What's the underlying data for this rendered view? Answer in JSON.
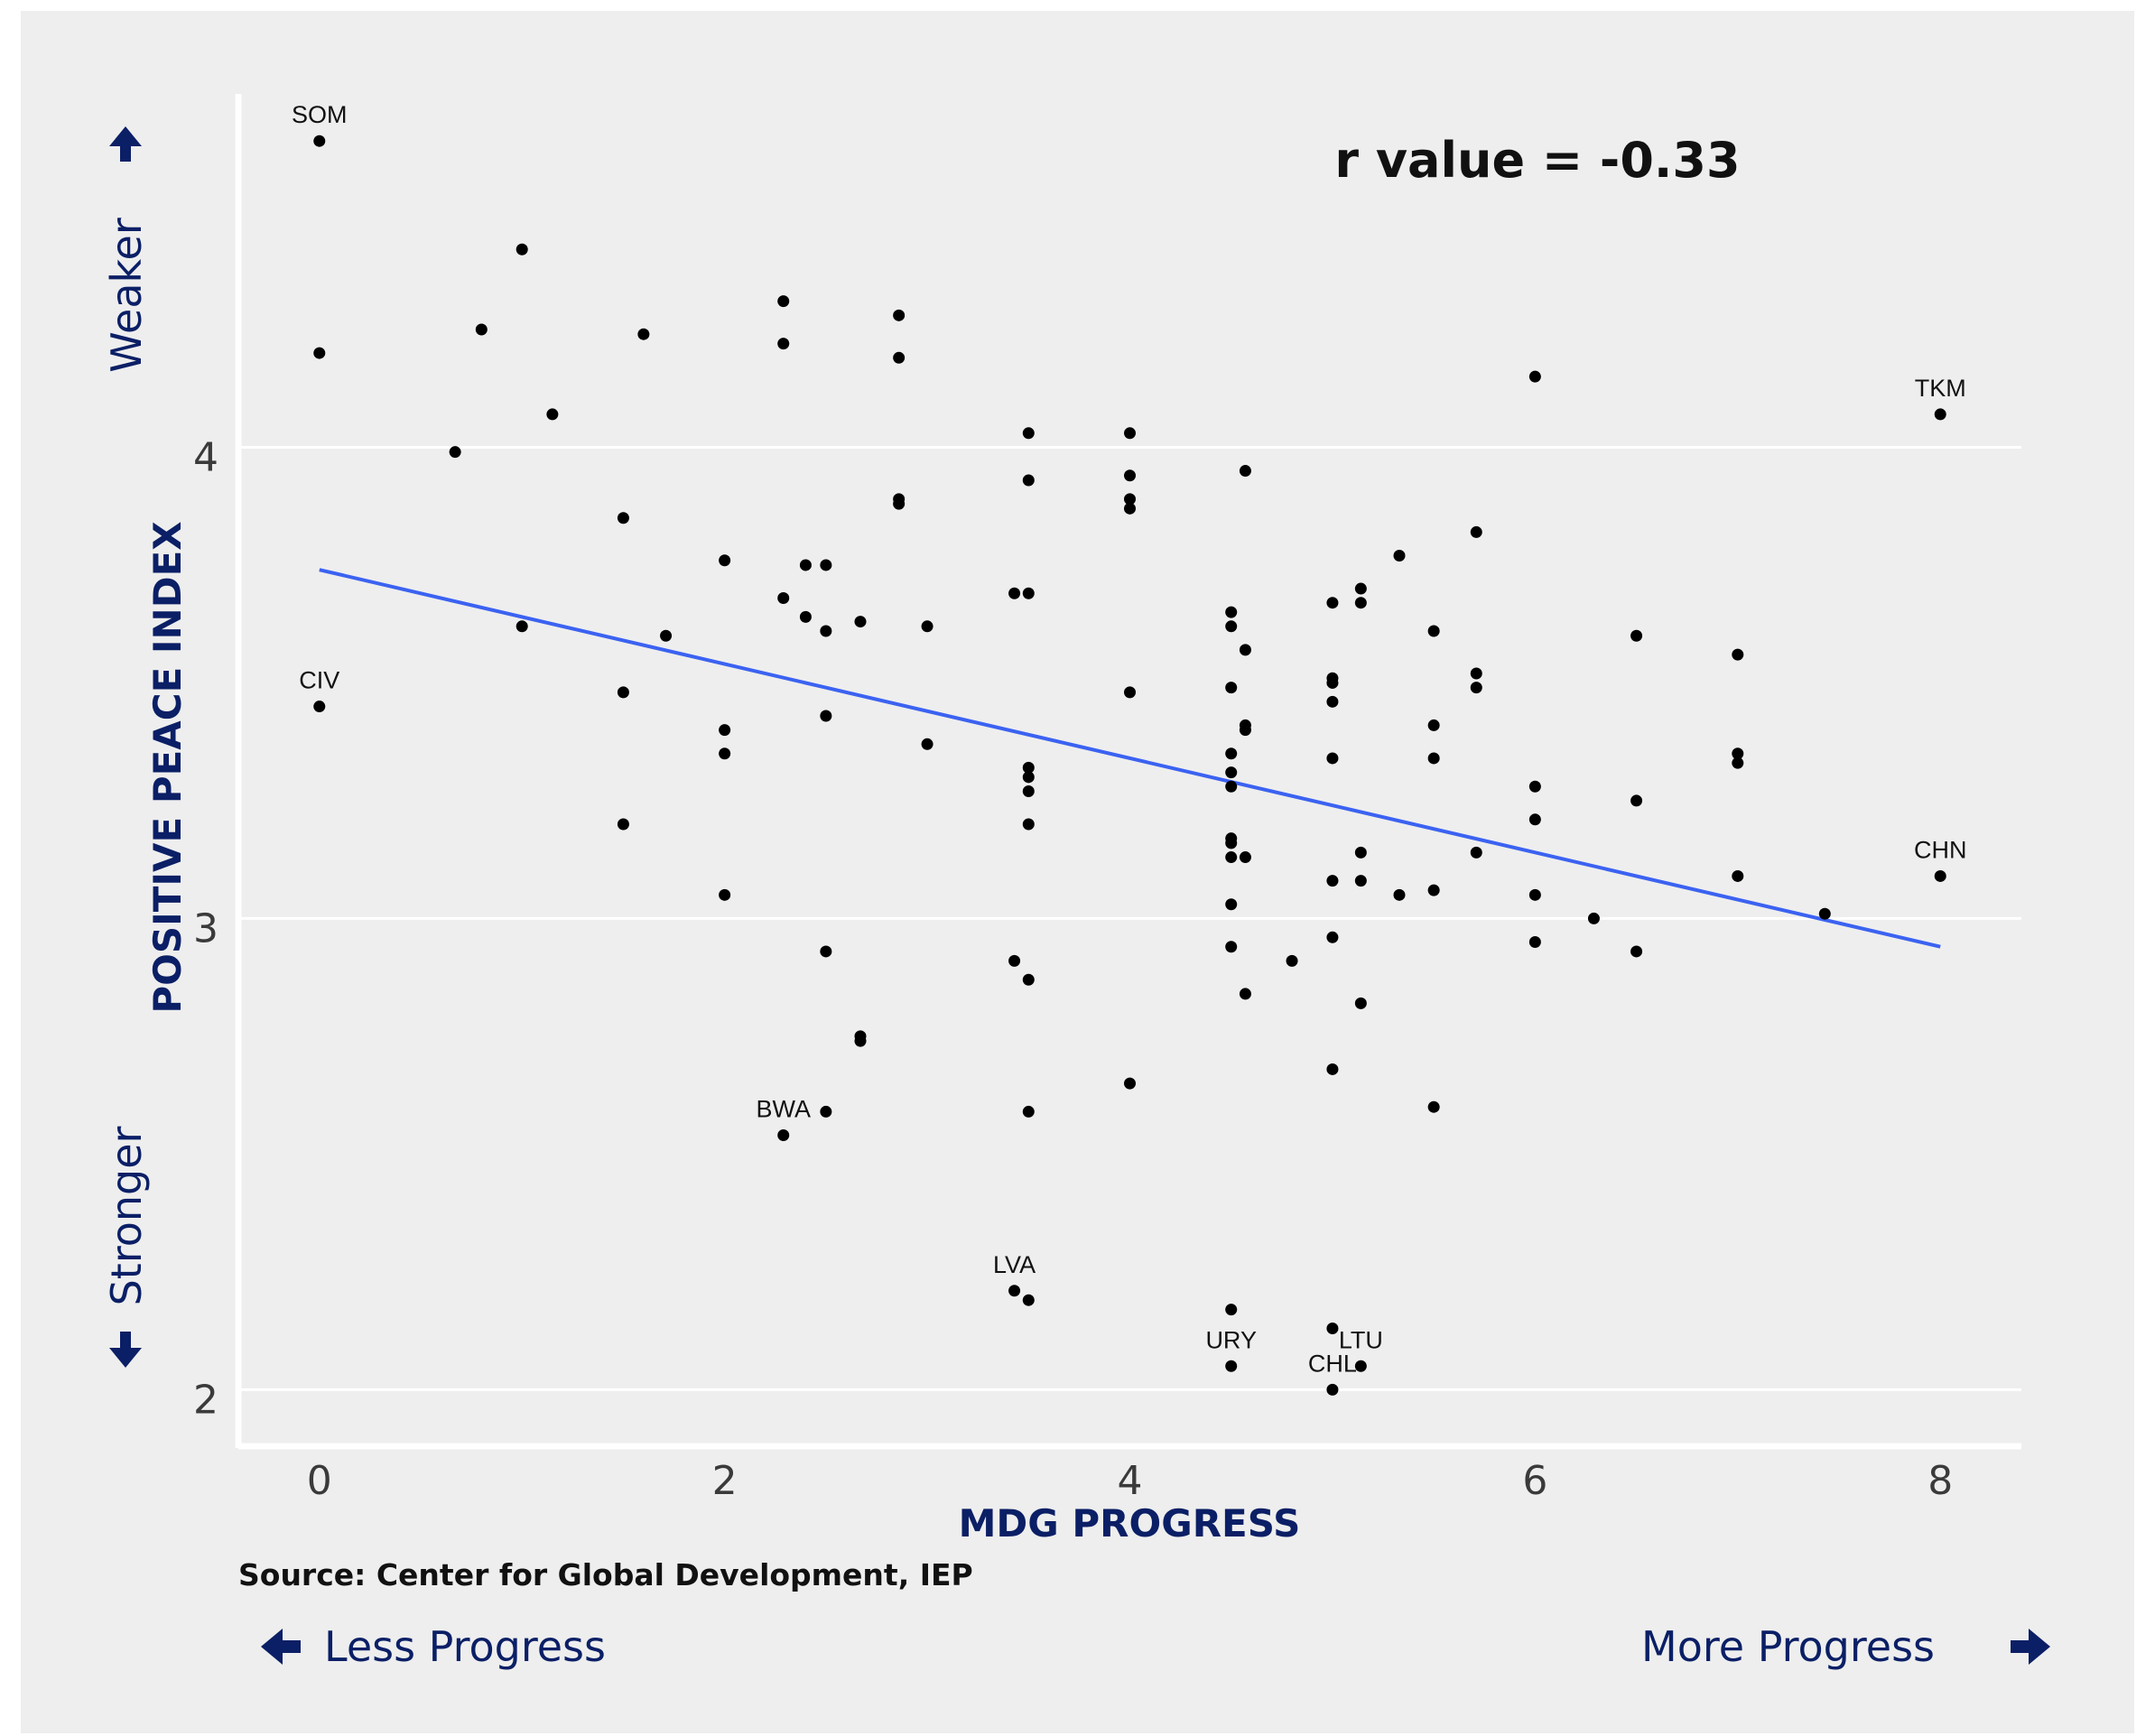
{
  "chart_data": {
    "type": "scatter",
    "title": "",
    "annotation_text": "r value = -0.33",
    "xlabel": "MDG PROGRESS",
    "ylabel": "POSITIVE PEACE INDEX",
    "source": "Source: Center for Global Development, IEP",
    "y_top_hint": "Weaker",
    "y_bottom_hint": "Stronger",
    "x_left_hint": "Less Progress",
    "x_right_hint": "More Progress",
    "xlim": [
      -0.4,
      8.4
    ],
    "ylim": [
      1.88,
      4.75
    ],
    "x_ticks": [
      "0",
      "2",
      "4",
      "6",
      "8"
    ],
    "x_tick_values": [
      0,
      2,
      4,
      6,
      8
    ],
    "y_ticks": [
      "2",
      "3",
      "4"
    ],
    "y_tick_values": [
      2,
      3,
      4
    ],
    "grid": true,
    "trend_line": {
      "x": [
        0,
        8
      ],
      "y": [
        3.74,
        2.94
      ],
      "color": "#3b62f1"
    },
    "points": [
      {
        "x": 0,
        "y": 4.65,
        "label": "SOM"
      },
      {
        "x": 0,
        "y": 4.2
      },
      {
        "x": 0,
        "y": 3.45,
        "label": "CIV"
      },
      {
        "x": 0.67,
        "y": 3.99
      },
      {
        "x": 0.8,
        "y": 4.25
      },
      {
        "x": 1,
        "y": 4.42
      },
      {
        "x": 1,
        "y": 3.62
      },
      {
        "x": 1.15,
        "y": 4.07
      },
      {
        "x": 1.5,
        "y": 3.85
      },
      {
        "x": 1.5,
        "y": 3.48
      },
      {
        "x": 1.5,
        "y": 3.2
      },
      {
        "x": 1.6,
        "y": 4.24
      },
      {
        "x": 1.71,
        "y": 3.6
      },
      {
        "x": 2,
        "y": 3.76
      },
      {
        "x": 2,
        "y": 3.4
      },
      {
        "x": 2,
        "y": 3.35
      },
      {
        "x": 2,
        "y": 3.05
      },
      {
        "x": 2.29,
        "y": 4.31
      },
      {
        "x": 2.29,
        "y": 4.22
      },
      {
        "x": 2.29,
        "y": 3.68
      },
      {
        "x": 2.29,
        "y": 2.54,
        "label": "BWA"
      },
      {
        "x": 2.4,
        "y": 3.75
      },
      {
        "x": 2.4,
        "y": 3.64
      },
      {
        "x": 2.5,
        "y": 3.75
      },
      {
        "x": 2.5,
        "y": 3.61
      },
      {
        "x": 2.5,
        "y": 3.43
      },
      {
        "x": 2.5,
        "y": 2.93
      },
      {
        "x": 2.5,
        "y": 2.59
      },
      {
        "x": 2.67,
        "y": 3.63
      },
      {
        "x": 2.67,
        "y": 2.75
      },
      {
        "x": 2.67,
        "y": 2.74
      },
      {
        "x": 2.86,
        "y": 4.28
      },
      {
        "x": 2.86,
        "y": 4.19
      },
      {
        "x": 2.86,
        "y": 3.89
      },
      {
        "x": 2.86,
        "y": 3.88
      },
      {
        "x": 3,
        "y": 3.62
      },
      {
        "x": 3,
        "y": 3.37
      },
      {
        "x": 3.43,
        "y": 3.69
      },
      {
        "x": 3.43,
        "y": 2.91
      },
      {
        "x": 3.43,
        "y": 2.21,
        "label": "LVA"
      },
      {
        "x": 3.5,
        "y": 4.03
      },
      {
        "x": 3.5,
        "y": 3.93
      },
      {
        "x": 3.5,
        "y": 3.69
      },
      {
        "x": 3.5,
        "y": 3.32
      },
      {
        "x": 3.5,
        "y": 3.3
      },
      {
        "x": 3.5,
        "y": 3.27
      },
      {
        "x": 3.5,
        "y": 3.2
      },
      {
        "x": 3.5,
        "y": 2.87
      },
      {
        "x": 3.5,
        "y": 2.59
      },
      {
        "x": 3.5,
        "y": 2.19
      },
      {
        "x": 4,
        "y": 4.03
      },
      {
        "x": 4,
        "y": 3.94
      },
      {
        "x": 4,
        "y": 3.89
      },
      {
        "x": 4,
        "y": 3.87
      },
      {
        "x": 4,
        "y": 3.48
      },
      {
        "x": 4,
        "y": 2.65
      },
      {
        "x": 4.5,
        "y": 3.65
      },
      {
        "x": 4.5,
        "y": 3.62
      },
      {
        "x": 4.5,
        "y": 3.49
      },
      {
        "x": 4.5,
        "y": 3.35
      },
      {
        "x": 4.5,
        "y": 3.31
      },
      {
        "x": 4.5,
        "y": 3.28
      },
      {
        "x": 4.5,
        "y": 3.17
      },
      {
        "x": 4.5,
        "y": 3.16
      },
      {
        "x": 4.5,
        "y": 3.13
      },
      {
        "x": 4.5,
        "y": 3.03
      },
      {
        "x": 4.5,
        "y": 2.94
      },
      {
        "x": 4.5,
        "y": 2.17
      },
      {
        "x": 4.5,
        "y": 2.05,
        "label": "URY"
      },
      {
        "x": 4.57,
        "y": 3.95
      },
      {
        "x": 4.57,
        "y": 3.57
      },
      {
        "x": 4.57,
        "y": 3.41
      },
      {
        "x": 4.57,
        "y": 3.4
      },
      {
        "x": 4.57,
        "y": 3.13
      },
      {
        "x": 4.57,
        "y": 2.84
      },
      {
        "x": 4.8,
        "y": 2.91
      },
      {
        "x": 5,
        "y": 3.67
      },
      {
        "x": 5,
        "y": 3.51
      },
      {
        "x": 5,
        "y": 3.5
      },
      {
        "x": 5,
        "y": 3.46
      },
      {
        "x": 5,
        "y": 3.34
      },
      {
        "x": 5,
        "y": 3.08
      },
      {
        "x": 5,
        "y": 2.96
      },
      {
        "x": 5,
        "y": 2.68
      },
      {
        "x": 5,
        "y": 2.13
      },
      {
        "x": 5,
        "y": 2.0,
        "label": "CHL"
      },
      {
        "x": 5.14,
        "y": 3.7
      },
      {
        "x": 5.14,
        "y": 3.67
      },
      {
        "x": 5.14,
        "y": 3.14
      },
      {
        "x": 5.14,
        "y": 3.08
      },
      {
        "x": 5.14,
        "y": 2.82
      },
      {
        "x": 5.14,
        "y": 2.05,
        "label": "LTU"
      },
      {
        "x": 5.33,
        "y": 3.77
      },
      {
        "x": 5.33,
        "y": 3.05
      },
      {
        "x": 5.5,
        "y": 3.61
      },
      {
        "x": 5.5,
        "y": 3.41
      },
      {
        "x": 5.5,
        "y": 3.34
      },
      {
        "x": 5.5,
        "y": 3.06
      },
      {
        "x": 5.5,
        "y": 2.6
      },
      {
        "x": 5.71,
        "y": 3.82
      },
      {
        "x": 5.71,
        "y": 3.52
      },
      {
        "x": 5.71,
        "y": 3.49
      },
      {
        "x": 5.71,
        "y": 3.14
      },
      {
        "x": 6,
        "y": 4.15
      },
      {
        "x": 6,
        "y": 3.28
      },
      {
        "x": 6,
        "y": 3.21
      },
      {
        "x": 6,
        "y": 3.05
      },
      {
        "x": 6,
        "y": 2.95
      },
      {
        "x": 6.29,
        "y": 3.0
      },
      {
        "x": 6.5,
        "y": 3.6
      },
      {
        "x": 6.5,
        "y": 3.25
      },
      {
        "x": 6.5,
        "y": 2.93
      },
      {
        "x": 7,
        "y": 3.56
      },
      {
        "x": 7,
        "y": 3.35
      },
      {
        "x": 7,
        "y": 3.33
      },
      {
        "x": 7,
        "y": 3.09
      },
      {
        "x": 7.43,
        "y": 3.01
      },
      {
        "x": 8,
        "y": 4.07,
        "label": "TKM"
      },
      {
        "x": 8,
        "y": 3.09,
        "label": "CHN"
      }
    ]
  }
}
